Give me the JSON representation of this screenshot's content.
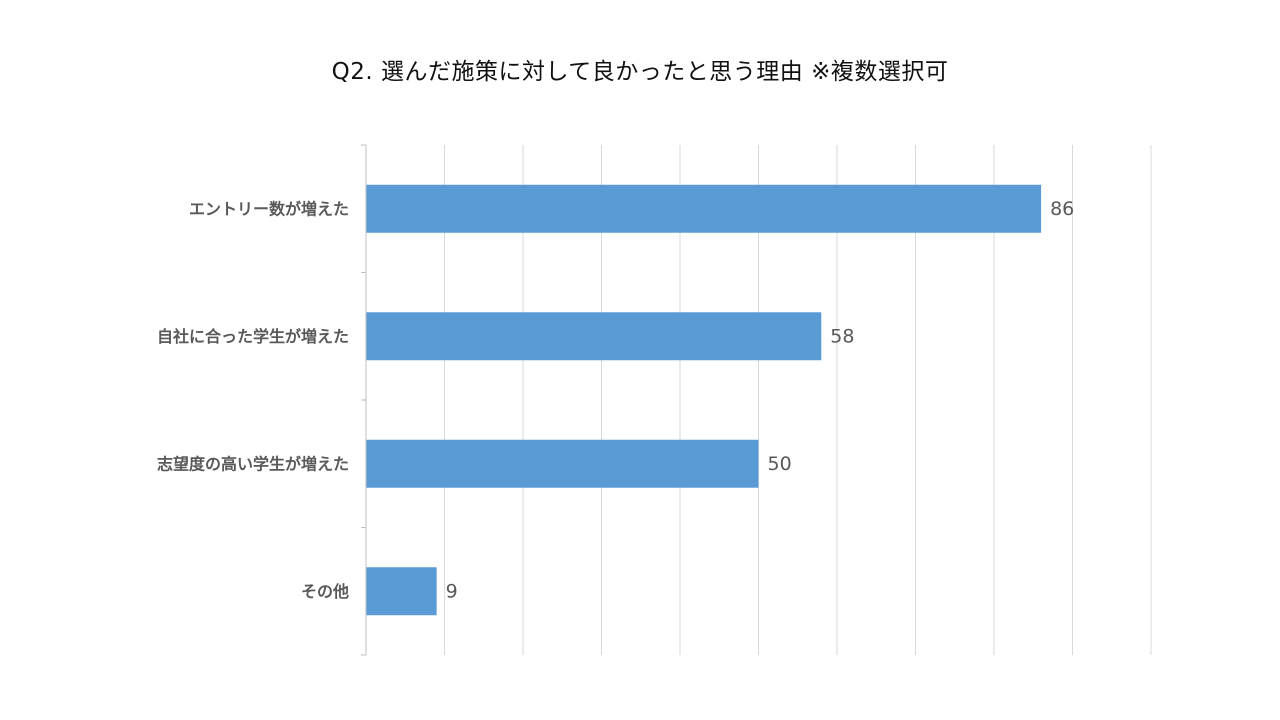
{
  "chart_data": {
    "type": "bar",
    "orientation": "horizontal",
    "title": "Q2. 選んだ施策に対して良かったと思う理由 ※複数選択可",
    "categories": [
      "エントリー数が増えた",
      "自社に合った学生が増えた",
      "志望度の高い学生が増えた",
      "その他"
    ],
    "values": [
      86,
      58,
      50,
      9
    ],
    "xlim": [
      0,
      100
    ],
    "grid": true,
    "data_labels": true,
    "colors": {
      "bar": "#5b9bd5",
      "grid": "#d9d9d9",
      "axis": "#bfbfbf",
      "label": "#595959",
      "title": "#111111"
    }
  }
}
